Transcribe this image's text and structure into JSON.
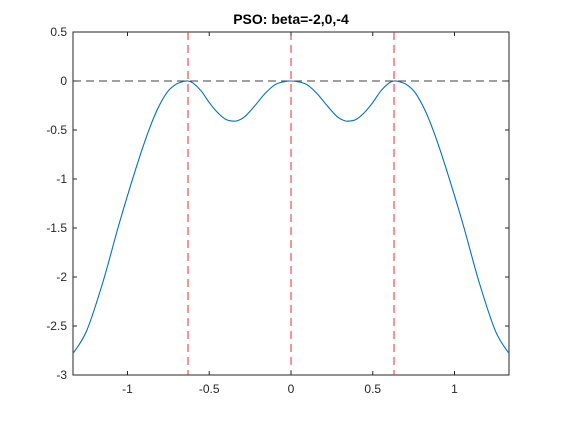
{
  "chart_data": {
    "type": "line",
    "title": "PSO: beta=-2,0,-4",
    "xlabel": "",
    "ylabel": "",
    "xlim": [
      -1.3333,
      1.3333
    ],
    "ylim": [
      -3,
      0.5
    ],
    "xticks": [
      -1,
      -0.5,
      0,
      0.5,
      1
    ],
    "xtick_labels": [
      "-1",
      "-0.5",
      "0",
      "0.5",
      "1"
    ],
    "yticks": [
      0.5,
      0,
      -0.5,
      -1,
      -1.5,
      -2,
      -2.5,
      -3
    ],
    "ytick_labels": [
      "0.5",
      "0",
      "-0.5",
      "-1",
      "-1.5",
      "-2",
      "-2.5",
      "-3"
    ],
    "grid": false,
    "series": [
      {
        "color": "#0072bd",
        "x": [
          -1.3333,
          -1.25,
          -1.15,
          -1.05,
          -0.95,
          -0.88,
          -0.82,
          -0.76,
          -0.71,
          -0.67,
          -0.63,
          -0.6,
          -0.55,
          -0.5,
          -0.45,
          -0.4,
          -0.35,
          -0.32,
          -0.28,
          -0.22,
          -0.16,
          -0.1,
          -0.05,
          0,
          0.05,
          0.1,
          0.16,
          0.22,
          0.28,
          0.32,
          0.35,
          0.4,
          0.45,
          0.5,
          0.55,
          0.6,
          0.63,
          0.67,
          0.71,
          0.76,
          0.82,
          0.88,
          0.95,
          1.05,
          1.15,
          1.25,
          1.3333
        ],
        "y": [
          -2.78,
          -2.55,
          -2.05,
          -1.45,
          -0.9,
          -0.55,
          -0.3,
          -0.12,
          -0.04,
          -0.01,
          0,
          -0.02,
          -0.1,
          -0.22,
          -0.32,
          -0.39,
          -0.41,
          -0.4,
          -0.36,
          -0.25,
          -0.13,
          -0.04,
          -0.01,
          0,
          -0.01,
          -0.04,
          -0.13,
          -0.25,
          -0.36,
          -0.4,
          -0.41,
          -0.39,
          -0.32,
          -0.22,
          -0.1,
          -0.02,
          0,
          -0.01,
          -0.04,
          -0.12,
          -0.3,
          -0.55,
          -0.9,
          -1.45,
          -2.05,
          -2.55,
          -2.78
        ]
      }
    ],
    "reference_lines": {
      "horizontal": {
        "y": 0,
        "color": "#404040",
        "style": "dashed"
      },
      "vertical": {
        "x": [
          -0.63,
          0,
          0.63
        ],
        "color": "#e03030",
        "style": "dashed"
      }
    }
  }
}
